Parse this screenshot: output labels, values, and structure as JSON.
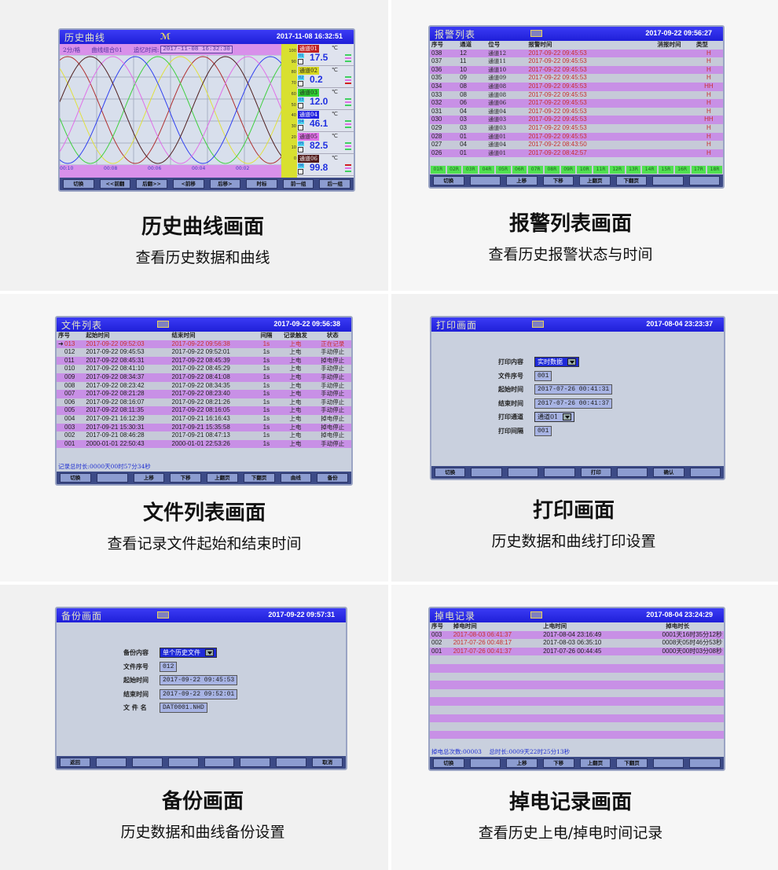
{
  "colors": {
    "header": "#2626e0",
    "row_purple": "#c890e6",
    "row_gray": "#c6cad8",
    "alarm_red": "#c83030",
    "channel_green": "#50e050"
  },
  "panels": [
    {
      "caption": "历史曲线画面",
      "subtitle": "查看历史数据和曲线",
      "title": "历史曲线",
      "datetime": "2017-11-08 16:32:51",
      "icon": "wave-logo-icon",
      "sub": {
        "grid": "2分/格",
        "group": "曲线组合01",
        "recall_label": "追忆时间:",
        "recall_value": "2017-11-08  16:32:30"
      },
      "time_ticks": [
        "00:10",
        "00:08",
        "00:06",
        "00:04",
        "00:02"
      ],
      "scale": [
        "100",
        "90",
        "80",
        "70",
        "60",
        "50",
        "40",
        "30",
        "20",
        "10",
        "0"
      ],
      "curve_colors": [
        "#b03030",
        "#e0e040",
        "#40d040",
        "#3040f0",
        "#e070e8",
        "#502020"
      ],
      "channels": [
        {
          "label": "通道01",
          "no": "01",
          "value": "17.5",
          "unit": "℃",
          "color": "#c02020"
        },
        {
          "label": "通道02",
          "no": "02",
          "value": "0.2",
          "unit": "℃",
          "color": "#d8d820"
        },
        {
          "label": "通道03",
          "no": "03",
          "value": "12.0",
          "unit": "℃",
          "color": "#30d030"
        },
        {
          "label": "通道04",
          "no": "04",
          "value": "46.1",
          "unit": "℃",
          "color": "#2020e0"
        },
        {
          "label": "通道05",
          "no": "05",
          "value": "82.5",
          "unit": "℃",
          "color": "#e070e8"
        },
        {
          "label": "通道06",
          "no": "06",
          "value": "99.8",
          "unit": "℃",
          "color": "#501818"
        }
      ],
      "buttons": [
        "切换",
        "<<前翻",
        "后翻>>",
        "<前移",
        "后移>",
        "时标",
        "前一组",
        "后一组"
      ]
    },
    {
      "caption": "报警列表画面",
      "subtitle": "查看历史报警状态与时间",
      "title": "报警列表",
      "datetime": "2017-09-22 09:56:27",
      "icon": "keyboard-icon",
      "headers": [
        "序号",
        "通道",
        "位号",
        "报警时间",
        "消报时间",
        "类型"
      ],
      "rows": [
        [
          "038",
          "12",
          "通道12",
          "2017-09-22 09:45:53",
          "",
          "H"
        ],
        [
          "037",
          "11",
          "通道11",
          "2017-09-22 09:45:53",
          "",
          "H"
        ],
        [
          "036",
          "10",
          "通道10",
          "2017-09-22 09:45:53",
          "",
          "H"
        ],
        [
          "035",
          "09",
          "通道09",
          "2017-09-22 09:45:53",
          "",
          "H"
        ],
        [
          "034",
          "08",
          "通道08",
          "2017-09-22 09:45:53",
          "",
          "HH"
        ],
        [
          "033",
          "08",
          "通道08",
          "2017-09-22 09:45:53",
          "",
          "H"
        ],
        [
          "032",
          "06",
          "通道06",
          "2017-09-22 09:45:53",
          "",
          "H"
        ],
        [
          "031",
          "04",
          "通道04",
          "2017-09-22 09:45:53",
          "",
          "H"
        ],
        [
          "030",
          "03",
          "通道03",
          "2017-09-22 09:45:53",
          "",
          "HH"
        ],
        [
          "029",
          "03",
          "通道03",
          "2017-09-22 09:45:53",
          "",
          "H"
        ],
        [
          "028",
          "01",
          "通道01",
          "2017-09-22 09:45:53",
          "",
          "H"
        ],
        [
          "027",
          "04",
          "通道04",
          "2017-09-22 08:43:50",
          "",
          "H"
        ],
        [
          "026",
          "01",
          "通道01",
          "2017-09-22 08:42:57",
          "",
          "H"
        ]
      ],
      "relays": [
        "01R",
        "02R",
        "03R",
        "04R",
        "05R",
        "06R",
        "07R",
        "08R",
        "09R",
        "10R",
        "11R",
        "12R",
        "13R",
        "14R",
        "15R",
        "16R",
        "17R",
        "18R"
      ],
      "buttons": [
        "切换",
        "",
        "上移",
        "下移",
        "上翻页",
        "下翻页",
        "",
        ""
      ]
    },
    {
      "caption": "文件列表画面",
      "subtitle": "查看记录文件起始和结束时间",
      "title": "文件列表",
      "datetime": "2017-09-22 09:56:38",
      "icon": "keyboard-icon",
      "headers": [
        "序号",
        "起始时间",
        "结束时间",
        "间隔",
        "记录触发",
        "状态"
      ],
      "rows": [
        [
          "013",
          "2017-09-22 09:52:03",
          "2017-09-22 09:56:38",
          "1s",
          "上电",
          "正在记录"
        ],
        [
          "012",
          "2017-09-22 09:45:53",
          "2017-09-22 09:52:01",
          "1s",
          "上电",
          "手动停止"
        ],
        [
          "011",
          "2017-09-22 08:45:31",
          "2017-09-22 08:45:39",
          "1s",
          "上电",
          "掉电停止"
        ],
        [
          "010",
          "2017-09-22 08:41:10",
          "2017-09-22 08:45:29",
          "1s",
          "上电",
          "手动停止"
        ],
        [
          "009",
          "2017-09-22 08:34:37",
          "2017-09-22 08:41:08",
          "1s",
          "上电",
          "手动停止"
        ],
        [
          "008",
          "2017-09-22 08:23:42",
          "2017-09-22 08:34:35",
          "1s",
          "上电",
          "手动停止"
        ],
        [
          "007",
          "2017-09-22 08:21:28",
          "2017-09-22 08:23:40",
          "1s",
          "上电",
          "手动停止"
        ],
        [
          "006",
          "2017-09-22 08:16:07",
          "2017-09-22 08:21:26",
          "1s",
          "上电",
          "手动停止"
        ],
        [
          "005",
          "2017-09-22 08:11:35",
          "2017-09-22 08:16:05",
          "1s",
          "上电",
          "手动停止"
        ],
        [
          "004",
          "2017-09-21 16:12:39",
          "2017-09-21 16:16:43",
          "1s",
          "上电",
          "掉电停止"
        ],
        [
          "003",
          "2017-09-21 15:30:31",
          "2017-09-21 15:35:58",
          "1s",
          "上电",
          "掉电停止"
        ],
        [
          "002",
          "2017-09-21 08:46:28",
          "2017-09-21 08:47:13",
          "1s",
          "上电",
          "掉电停止"
        ],
        [
          "001",
          "2000-01-01 22:50:43",
          "2000-01-01 22:53:26",
          "1s",
          "上电",
          "手动停止"
        ]
      ],
      "footer": "记录总时长:0000天00时57分34秒",
      "buttons": [
        "切换",
        "",
        "上移",
        "下移",
        "上翻页",
        "下翻页",
        "曲线",
        "备份"
      ]
    },
    {
      "caption": "打印画面",
      "subtitle": "历史数据和曲线打印设置",
      "title": "打印画面",
      "datetime": "2017-08-04 23:23:37",
      "icon": "keyboard-icon",
      "fields": [
        {
          "label": "打印内容",
          "value": "实时数据",
          "type": "select"
        },
        {
          "label": "文件序号",
          "value": "001"
        },
        {
          "label": "起始时间",
          "value": "2017-07-26 00:41:31"
        },
        {
          "label": "结束时间",
          "value": "2017-07-26 00:41:37"
        },
        {
          "label": "打印通道",
          "value": "通道01",
          "type": "select2"
        },
        {
          "label": "打印间隔",
          "value": "001"
        }
      ],
      "buttons": [
        "切换",
        "",
        "",
        "",
        "打印",
        "",
        "确认",
        ""
      ]
    },
    {
      "caption": "备份画面",
      "subtitle": "历史数据和曲线备份设置",
      "title": "备份画面",
      "datetime": "2017-09-22 09:57:31",
      "icon": "keyboard-icon",
      "fields": [
        {
          "label": "备份内容",
          "value": "单个历史文件",
          "type": "select"
        },
        {
          "label": "文件序号",
          "value": "012"
        },
        {
          "label": "起始时间",
          "value": "2017-09-22 09:45:53"
        },
        {
          "label": "结束时间",
          "value": "2017-09-22 09:52:01"
        },
        {
          "label": "文 件 名",
          "value": "DAT0001.NHD"
        }
      ],
      "buttons": [
        "返回",
        "",
        "",
        "",
        "",
        "",
        "",
        "取消"
      ]
    },
    {
      "caption": "掉电记录画面",
      "subtitle": "查看历史上电/掉电时间记录",
      "title": "掉电记录",
      "datetime": "2017-08-04 23:24:29",
      "icon": "keyboard-icon",
      "headers": [
        "序号",
        "掉电时间",
        "上电时间",
        "掉电时长"
      ],
      "rows": [
        [
          "003",
          "2017-08-03 06:41:37",
          "2017-08-04 23:16:49",
          "0001天16时35分12秒"
        ],
        [
          "002",
          "2017-07-26 00:48:17",
          "2017-08-03 06:35:10",
          "0008天05时46分53秒"
        ],
        [
          "001",
          "2017-07-26 00:41:37",
          "2017-07-26 00:44:45",
          "0000天00时03分08秒"
        ]
      ],
      "footer": "掉电总次数:00003    总时长:0009天22时25分13秒",
      "buttons": [
        "切换",
        "",
        "上移",
        "下移",
        "上翻页",
        "下翻页",
        "",
        ""
      ]
    }
  ]
}
